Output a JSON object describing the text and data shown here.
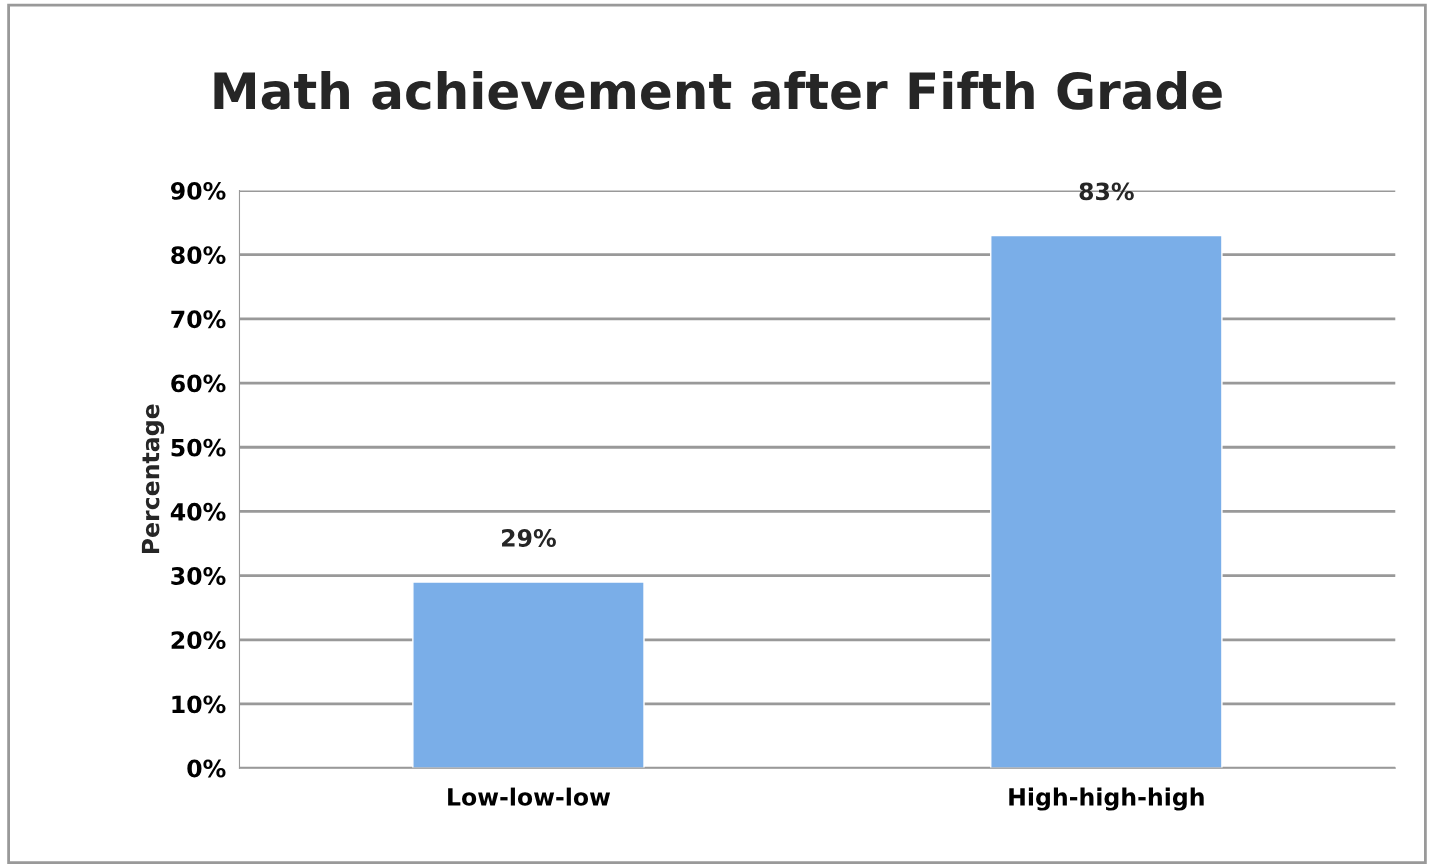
{
  "chart_data": {
    "type": "bar",
    "title": "Math achievement after Fifth Grade",
    "ylabel": "Percentage",
    "categories": [
      "Low-low-low",
      "High-high-high"
    ],
    "values": [
      29,
      83
    ],
    "color": "#7aaee8",
    "value_labels": [
      "29%",
      "83%"
    ],
    "ylim": [
      0,
      90
    ],
    "yticks": [
      {
        "value": 0,
        "label": "0%"
      },
      {
        "value": 10,
        "label": "10%"
      },
      {
        "value": 20,
        "label": "20%"
      },
      {
        "value": 30,
        "label": "30%"
      },
      {
        "value": 40,
        "label": "40%"
      },
      {
        "value": 50,
        "label": "50%"
      },
      {
        "value": 60,
        "label": "60%"
      },
      {
        "value": 70,
        "label": "70%"
      },
      {
        "value": 80,
        "label": "80%"
      },
      {
        "value": 90,
        "label": "90%"
      }
    ],
    "grid": "y",
    "legend": false
  }
}
